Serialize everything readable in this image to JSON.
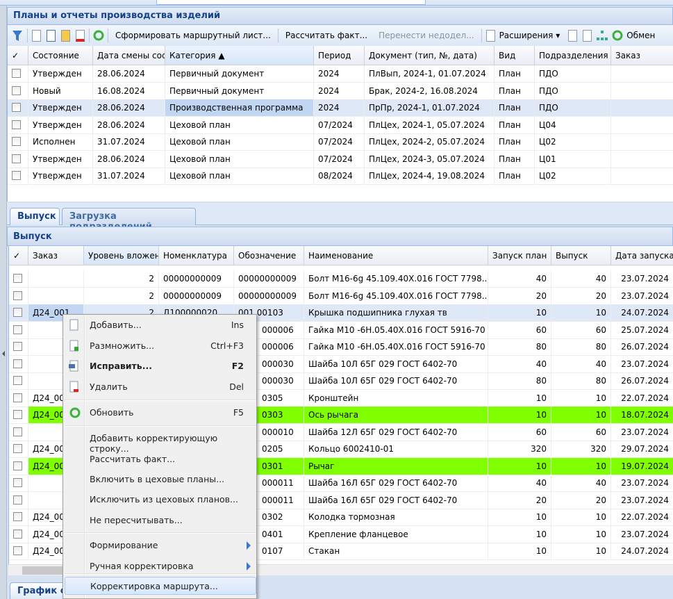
{
  "top_panel": {
    "title": "Планы и отчеты производства изделий"
  },
  "toolbar": {
    "form_route": "Сформировать маршрутный лист...",
    "calc_fact": "Рассчитать факт...",
    "transfer": "Перенести недодел...",
    "extensions": "Расширения ▾",
    "exchange": "Обмен"
  },
  "top_grid": {
    "columns": [
      "✓",
      "Состояние",
      "Дата смены состояния",
      "Категория ▲",
      "Период",
      "Документ (тип, №, дата)",
      "Вид",
      "Подразделения",
      "Заказ"
    ],
    "rows": [
      [
        "Утвержден",
        "28.06.2024",
        "Первичный документ",
        "2024",
        "ПлВып, 2024-1, 01.07.2024",
        "План",
        "ПДО",
        ""
      ],
      [
        "Новый",
        "16.08.2024",
        "Первичный документ",
        "2024",
        "Брак, 2024-2, 16.08.2024",
        "План",
        "ПДО",
        ""
      ],
      [
        "Утвержден",
        "28.06.2024",
        "Производственная программа",
        "2024",
        "ПрПр, 2024-1, 01.07.2024",
        "План",
        "ПДО",
        ""
      ],
      [
        "Утвержден",
        "28.06.2024",
        "Цеховой план",
        "07/2024",
        "ПлЦех, 2024-1, 05.07.2024",
        "План",
        "Ц04",
        ""
      ],
      [
        "Исполнен",
        "31.07.2024",
        "Цеховой план",
        "07/2024",
        "ПлЦех, 2024-2, 05.07.2024",
        "План",
        "Ц02",
        ""
      ],
      [
        "Утвержден",
        "28.06.2024",
        "Цеховой план",
        "07/2024",
        "ПлЦех, 2024-3, 05.07.2024",
        "План",
        "Ц01",
        ""
      ],
      [
        "Утвержден",
        "31.07.2024",
        "Цеховой план",
        "08/2024",
        "ПлЦех, 2024-4, 19.08.2024",
        "План",
        "Ц02",
        ""
      ]
    ],
    "selected_row": 2
  },
  "tabs": [
    "Выпуск",
    "Загрузка подразделений"
  ],
  "bottom_panel": {
    "title": "Выпуск"
  },
  "bottom_grid": {
    "columns": [
      "✓",
      "Заказ",
      "Уровень вложенности",
      "Номенклатура",
      "Обозначение",
      "Наименование",
      "Запуск план",
      "Выпуск",
      "Дата запуска"
    ],
    "rows": [
      {
        "zakaz": "",
        "level": "2",
        "nom": "00000000009",
        "oboz": "00000000009",
        "name": "Болт М16-6g 45.109.40Х.016 ГОСТ 7798...",
        "plan": "40",
        "vyp": "40",
        "date": "23.07.2024"
      },
      {
        "zakaz": "",
        "level": "2",
        "nom": "00000000009",
        "oboz": "00000000009",
        "name": "Болт М16-6g 45.109.40Х.016 ГОСТ 7798...",
        "plan": "20",
        "vyp": "20",
        "date": "23.07.2024"
      },
      {
        "zakaz": "Д24_001",
        "level": "2",
        "nom": "Д100000020",
        "oboz": "001.00103",
        "name": "Крышка подшипника глухая тв",
        "plan": "10",
        "vyp": "10",
        "date": "24.07.2024",
        "selected": true
      },
      {
        "zakaz": "",
        "level": "",
        "nom": "",
        "oboz": "000006",
        "name": "Гайка М10 -6Н.05.40Х.016 ГОСТ 5916-70",
        "plan": "60",
        "vyp": "60",
        "date": "25.07.2024"
      },
      {
        "zakaz": "",
        "level": "",
        "nom": "",
        "oboz": "000006",
        "name": "Гайка М10 -6Н.05.40Х.016 ГОСТ 5916-70",
        "plan": "80",
        "vyp": "80",
        "date": "26.07.2024"
      },
      {
        "zakaz": "",
        "level": "",
        "nom": "",
        "oboz": "000030",
        "name": "Шайба 10Л 65Г 029 ГОСТ 6402-70",
        "plan": "40",
        "vyp": "40",
        "date": "23.07.2024"
      },
      {
        "zakaz": "",
        "level": "",
        "nom": "",
        "oboz": "000030",
        "name": "Шайба 10Л 65Г 029 ГОСТ 6402-70",
        "plan": "80",
        "vyp": "80",
        "date": "26.07.2024"
      },
      {
        "zakaz": "Д24_00",
        "level": "",
        "nom": "",
        "oboz": "0305",
        "name": "Кронштейн",
        "plan": "10",
        "vyp": "10",
        "date": "22.07.2024"
      },
      {
        "zakaz": "Д24_00",
        "level": "",
        "nom": "",
        "oboz": "0303",
        "name": "Ось рычага",
        "plan": "10",
        "vyp": "10",
        "date": "18.07.2024",
        "highlight": "#80ff00"
      },
      {
        "zakaz": "",
        "level": "",
        "nom": "",
        "oboz": "000010",
        "name": "Шайба 12Л 65Г 029 ГОСТ 6402-70",
        "plan": "60",
        "vyp": "60",
        "date": "23.07.2024"
      },
      {
        "zakaz": "Д24_00",
        "level": "",
        "nom": "",
        "oboz": "0205",
        "name": "Кольцо 6002410-01",
        "plan": "320",
        "vyp": "320",
        "date": "29.07.2024"
      },
      {
        "zakaz": "Д24_00",
        "level": "",
        "nom": "",
        "oboz": "0301",
        "name": "Рычаг",
        "plan": "10",
        "vyp": "10",
        "date": "19.07.2024",
        "highlight": "#80ff00"
      },
      {
        "zakaz": "",
        "level": "",
        "nom": "",
        "oboz": "000011",
        "name": "Шайба 16Л 65Г 029 ГОСТ 6402-70",
        "plan": "40",
        "vyp": "40",
        "date": "23.07.2024"
      },
      {
        "zakaz": "",
        "level": "",
        "nom": "",
        "oboz": "000011",
        "name": "Шайба 16Л 65Г 029 ГОСТ 6402-70",
        "plan": "20",
        "vyp": "20",
        "date": "23.07.2024"
      },
      {
        "zakaz": "Д24_00",
        "level": "",
        "nom": "",
        "oboz": "0302",
        "name": "Колодка тормозная",
        "plan": "10",
        "vyp": "10",
        "date": "22.07.2024"
      },
      {
        "zakaz": "Д24_00",
        "level": "",
        "nom": "",
        "oboz": "0401",
        "name": "Крепление фланцевое",
        "plan": "10",
        "vyp": "10",
        "date": "23.07.2024"
      },
      {
        "zakaz": "Д24_00",
        "level": "",
        "nom": "",
        "oboz": "0107",
        "name": "Стакан",
        "plan": "10",
        "vyp": "10",
        "date": "24.07.2024"
      }
    ]
  },
  "context_menu": {
    "items": [
      {
        "label": "Добавить...",
        "key": "Ins",
        "icon": "new-doc-icon"
      },
      {
        "label": "Размножить...",
        "key": "Ctrl+F3",
        "icon": "copy-doc-icon"
      },
      {
        "label": "Исправить...",
        "key": "F2",
        "icon": "edit-icon",
        "bold": true
      },
      {
        "label": "Удалить",
        "key": "Del",
        "icon": "delete-icon"
      },
      {
        "label": "Обновить",
        "key": "F5",
        "icon": "refresh-icon"
      },
      {
        "label": "Добавить корректирующую строку..."
      },
      {
        "label": "Рассчитать факт..."
      },
      {
        "label": "Включить в цеховые планы..."
      },
      {
        "label": "Исключить из цеховых планов..."
      },
      {
        "label": "Не пересчитывать..."
      },
      {
        "label": "Формирование",
        "submenu": true
      },
      {
        "label": "Ручная корректировка",
        "submenu": true
      },
      {
        "label": "Корректировка маршрута...",
        "highlighted": true
      }
    ]
  },
  "bottom_tab": "График с"
}
